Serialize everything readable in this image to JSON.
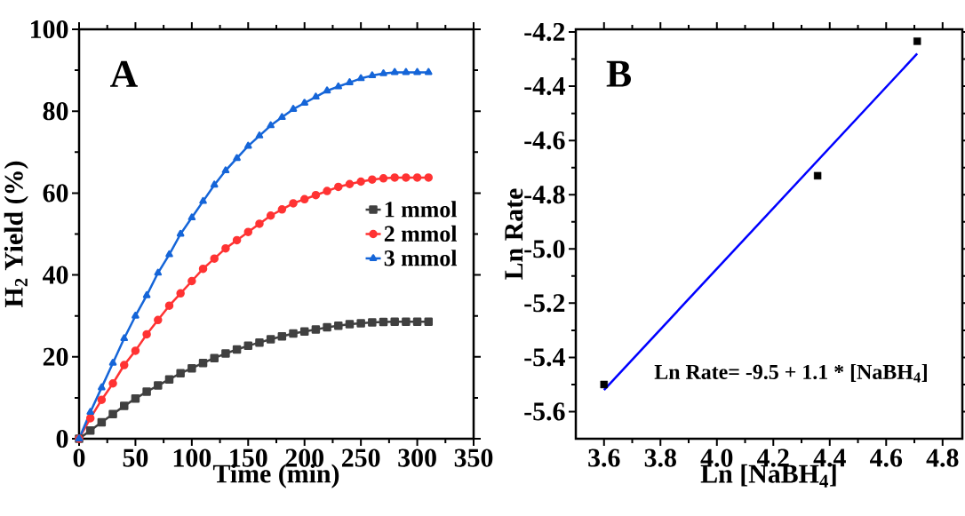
{
  "chart_data": [
    {
      "type": "line",
      "xlabel": "Time (min)",
      "ylabel": "H$_{2}$ Yield (%)",
      "xlim": [
        0,
        350
      ],
      "ylim": [
        0,
        100
      ],
      "xticks": [
        0,
        50,
        100,
        150,
        200,
        250,
        300,
        350
      ],
      "yticks": [
        0,
        20,
        40,
        60,
        80,
        100
      ],
      "legend": "right",
      "annotations": [
        "A"
      ],
      "x": [
        0,
        10,
        20,
        30,
        40,
        50,
        60,
        70,
        80,
        90,
        100,
        110,
        120,
        130,
        140,
        150,
        160,
        170,
        180,
        190,
        200,
        210,
        220,
        230,
        240,
        250,
        260,
        270,
        280,
        290,
        300,
        310
      ],
      "series": [
        {
          "name": "1 mmol",
          "color": "#404040",
          "marker": "square",
          "values": [
            0,
            2,
            4,
            6,
            8,
            9.8,
            11.5,
            13,
            14.5,
            16,
            17.2,
            18.5,
            19.7,
            20.8,
            21.8,
            22.7,
            23.5,
            24.3,
            25,
            25.7,
            26.2,
            26.7,
            27.2,
            27.6,
            28,
            28.2,
            28.4,
            28.5,
            28.6,
            28.6,
            28.6,
            28.6
          ]
        },
        {
          "name": "2 mmol",
          "color": "#ff3333",
          "marker": "circle",
          "values": [
            0,
            5,
            9.5,
            13.5,
            18,
            21.5,
            25.5,
            29,
            32.5,
            35.5,
            38.5,
            41.5,
            44,
            46.5,
            48.5,
            50.5,
            52.5,
            54.5,
            56,
            57.5,
            58.5,
            59.5,
            60.5,
            61.5,
            62.2,
            62.8,
            63.3,
            63.6,
            63.8,
            63.8,
            63.8,
            63.8
          ]
        },
        {
          "name": "3 mmol",
          "color": "#1565d8",
          "marker": "triangle",
          "values": [
            0,
            6.5,
            12.5,
            18.5,
            24.5,
            30,
            35,
            40.5,
            45,
            50,
            54,
            58,
            62,
            65.5,
            68.5,
            71.5,
            74,
            76.5,
            78.5,
            80.5,
            82,
            83.5,
            85,
            86,
            87,
            88,
            88.7,
            89.2,
            89.5,
            89.5,
            89.5,
            89.5
          ]
        }
      ]
    },
    {
      "type": "scatter",
      "xlabel": "Ln [NaBH$_{4}$]",
      "ylabel": "Ln Rate",
      "xlim": [
        3.5,
        4.87
      ],
      "ylim": [
        -5.7,
        -4.19
      ],
      "xticks": [
        3.6,
        3.8,
        {
          "value": 4.0,
          "label": "4.0"
        },
        4.2,
        4.4,
        4.6,
        4.8
      ],
      "yticks": [
        -5.6,
        -5.4,
        -5.2,
        {
          "value": -5.0,
          "label": "-5.0"
        },
        -4.8,
        -4.6,
        -4.4,
        -4.2
      ],
      "annotations": [
        "B",
        "Ln Rate= -9.5 + 1.1 * [NaBH$_{4}$]"
      ],
      "series": [
        {
          "color": "#000000",
          "marker": "square",
          "x": [
            3.6,
            4.357,
            4.71
          ],
          "values": [
            -5.5,
            -4.73,
            -4.234
          ]
        },
        {
          "type": "line",
          "color": "#0000ff",
          "marker": "none",
          "x": [
            3.6,
            4.71
          ],
          "values": [
            -5.52,
            -4.28
          ]
        }
      ]
    }
  ]
}
